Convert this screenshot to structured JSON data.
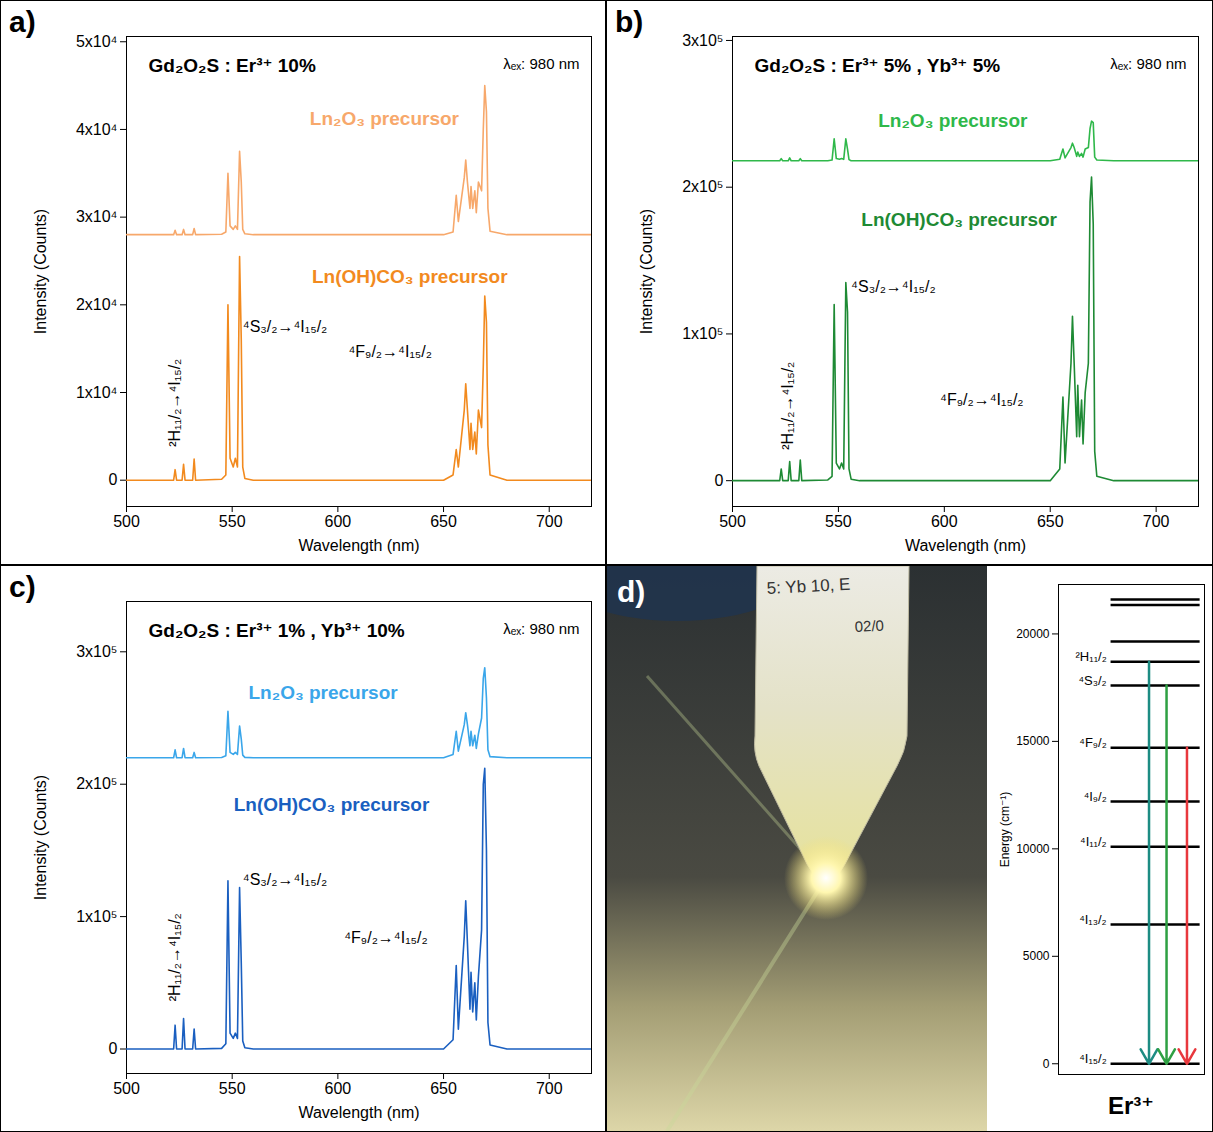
{
  "chart_data": [
    {
      "panel": "a)",
      "type": "line",
      "title": "Gd₂O₂S : Er³⁺ 10%",
      "excitation": "λₑₓ: 980 nm",
      "x_label": "Wavelength (nm)",
      "y_label": "Intensity (Counts)",
      "xlim": [
        500,
        720
      ],
      "xticks": [
        500,
        550,
        600,
        650,
        700
      ],
      "ylim": [
        -3000,
        50600
      ],
      "yticks": [
        0,
        {
          "value": 10000,
          "label": "1x10⁴"
        },
        {
          "value": 20000,
          "label": "2x10⁴"
        },
        {
          "value": 30000,
          "label": "3x10⁴"
        },
        {
          "value": 40000,
          "label": "4x10⁴"
        },
        {
          "value": 50000,
          "label": "5x10⁴"
        }
      ],
      "x": [
        500,
        520,
        522.3,
        523,
        523.7,
        526.3,
        527,
        527.7,
        531.3,
        532,
        532.7,
        545,
        547,
        548,
        549,
        550.5,
        551.5,
        552.5,
        553.5,
        554.3,
        555,
        556,
        560,
        650,
        654.5,
        656,
        657,
        659.8,
        660.5,
        661.3,
        662.5,
        663,
        663.8,
        664.8,
        665.5,
        666.5,
        668,
        668.8,
        669.5,
        670.3,
        671,
        672,
        680,
        720
      ],
      "series": [
        {
          "name": "Ln₂O₃ precursor",
          "color": "#f7a86b",
          "label_position": [
            622,
            41200
          ],
          "values": [
            28000,
            28000,
            28000,
            28500,
            28000,
            28000,
            28600,
            28000,
            28000,
            28700,
            28000,
            28050,
            28300,
            35000,
            29000,
            28600,
            29000,
            28600,
            37500,
            34000,
            28600,
            28100,
            28000,
            28000,
            28300,
            32500,
            29500,
            34500,
            36500,
            34000,
            31000,
            33500,
            31000,
            33000,
            30500,
            34000,
            33000,
            40000,
            45000,
            42000,
            31000,
            28400,
            28000,
            28000
          ]
        },
        {
          "name": "Ln(OH)CO₃ precursor",
          "color": "#f28a1e",
          "label_position": [
            634,
            23200
          ],
          "values": [
            0,
            0,
            0,
            1200,
            0,
            0,
            1800,
            0,
            0,
            2400,
            0,
            100,
            600,
            20000,
            2500,
            1500,
            2500,
            1500,
            25500,
            16000,
            1500,
            200,
            0,
            0,
            600,
            3500,
            1500,
            8000,
            11000,
            8000,
            3500,
            6500,
            3500,
            5500,
            3000,
            8000,
            6000,
            13000,
            21000,
            18000,
            4000,
            600,
            0,
            0
          ]
        }
      ],
      "annotations": [
        {
          "text": "²H₁₁/₂→⁴I₁₅/₂",
          "x": 523,
          "y": 3800
        },
        {
          "text": "⁴S₃/₂→⁴I₁₅/₂",
          "x": 555,
          "y": 17500
        },
        {
          "text": "⁴F₉/₂→⁴I₁₅/₂",
          "x": 605,
          "y": 14600
        }
      ]
    },
    {
      "panel": "b)",
      "type": "line",
      "title": "Gd₂O₂S : Er³⁺ 5% , Yb³⁺ 5%",
      "excitation": "λₑₓ: 980 nm",
      "x_label": "Wavelength (nm)",
      "y_label": "Intensity (Counts)",
      "xlim": [
        500,
        720
      ],
      "xticks": [
        500,
        550,
        600,
        650,
        700
      ],
      "ylim": [
        -17600,
        302700
      ],
      "yticks": [
        0,
        {
          "value": 100000,
          "label": "1x10⁵"
        },
        {
          "value": 200000,
          "label": "2x10⁵"
        },
        {
          "value": 300000,
          "label": "3x10⁵"
        }
      ],
      "x": [
        500,
        520,
        522.3,
        523,
        523.7,
        526.3,
        527,
        527.7,
        531.3,
        532,
        532.7,
        545,
        547,
        548,
        549,
        550.5,
        551.5,
        552.5,
        553.5,
        554.3,
        555,
        556,
        560,
        650,
        654.5,
        656,
        657,
        659.8,
        660.5,
        661.3,
        662.5,
        663,
        663.8,
        664.8,
        665.5,
        666.5,
        668,
        668.8,
        669.5,
        670.3,
        671,
        672,
        680,
        720
      ],
      "series": [
        {
          "name": "Ln₂O₃ precursor",
          "color": "#2fb84a",
          "label_position": [
            604,
            245000
          ],
          "values": [
            218000,
            218000,
            218000,
            219500,
            218000,
            218000,
            220000,
            218000,
            218000,
            219500,
            218000,
            218000,
            218500,
            233000,
            219500,
            219000,
            219500,
            219000,
            233000,
            226000,
            218800,
            218000,
            218000,
            218000,
            219000,
            226000,
            220000,
            227000,
            230000,
            227000,
            221000,
            224000,
            221000,
            223000,
            220500,
            226000,
            227000,
            240000,
            245000,
            244000,
            220500,
            218500,
            218000,
            218000
          ]
        },
        {
          "name": "Ln(OH)CO₃ precursor",
          "color": "#1e8a34",
          "label_position": [
            607,
            178000
          ],
          "values": [
            0,
            0,
            0,
            8000,
            0,
            0,
            13000,
            0,
            0,
            14000,
            0,
            500,
            3000,
            120000,
            12000,
            8000,
            12000,
            8000,
            135000,
            115000,
            8000,
            1000,
            0,
            0,
            8000,
            57000,
            12000,
            80000,
            112000,
            80000,
            30000,
            65000,
            30000,
            55000,
            25000,
            60000,
            80000,
            190000,
            207000,
            175000,
            20000,
            3000,
            0,
            0
          ]
        }
      ],
      "annotations": [
        {
          "text": "²H₁₁/₂→⁴I₁₅/₂",
          "x": 526,
          "y": 21000
        },
        {
          "text": "⁴S₃/₂→⁴I₁₅/₂",
          "x": 556,
          "y": 132000
        },
        {
          "text": "⁴F₉/₂→⁴I₁₅/₂",
          "x": 598,
          "y": 55000
        }
      ]
    },
    {
      "panel": "c)",
      "type": "line",
      "title": "Gd₂O₂S : Er³⁺ 1% , Yb³⁺ 10%",
      "excitation": "λₑₓ: 980 nm",
      "x_label": "Wavelength (nm)",
      "y_label": "Intensity (Counts)",
      "xlim": [
        500,
        720
      ],
      "xticks": [
        500,
        550,
        600,
        650,
        700
      ],
      "ylim": [
        -18500,
        338000
      ],
      "yticks": [
        0,
        {
          "value": 100000,
          "label": "1x10⁵"
        },
        {
          "value": 200000,
          "label": "2x10⁵"
        },
        {
          "value": 300000,
          "label": "3x10⁵"
        }
      ],
      "x": [
        500,
        520,
        522.3,
        523,
        523.7,
        526.3,
        527,
        527.7,
        531.3,
        532,
        532.7,
        545,
        547,
        548,
        549,
        550.5,
        551.5,
        552.5,
        553.5,
        554.3,
        555,
        556,
        560,
        650,
        654.5,
        656,
        657,
        659.8,
        660.5,
        661.3,
        662.5,
        663,
        663.8,
        664.8,
        665.5,
        666.5,
        668,
        668.8,
        669.5,
        670.3,
        671,
        672,
        680,
        720
      ],
      "series": [
        {
          "name": "Ln₂O₃ precursor",
          "color": "#3aa6ea",
          "label_position": [
            593,
            269000
          ],
          "values": [
            220000,
            220000,
            220000,
            226000,
            220000,
            220000,
            227000,
            220000,
            220000,
            224000,
            220000,
            220200,
            221500,
            255000,
            224000,
            222500,
            224000,
            222500,
            244000,
            234000,
            222000,
            220300,
            220000,
            220000,
            222500,
            240000,
            225000,
            245000,
            254000,
            245000,
            229000,
            240000,
            229000,
            237000,
            227000,
            238000,
            250000,
            280000,
            288000,
            265000,
            226000,
            220800,
            220000,
            220000
          ]
        },
        {
          "name": "Ln(OH)CO₃ precursor",
          "color": "#1a5fc0",
          "label_position": [
            597,
            184000
          ],
          "values": [
            0,
            0,
            0,
            18000,
            0,
            0,
            23000,
            0,
            0,
            15000,
            0,
            500,
            4000,
            127000,
            12000,
            8000,
            12000,
            8000,
            122000,
            65000,
            6000,
            1000,
            0,
            0,
            7000,
            63000,
            15000,
            85000,
            112000,
            80000,
            30000,
            58000,
            28000,
            50000,
            22000,
            55000,
            90000,
            200000,
            212000,
            150000,
            20000,
            3000,
            0,
            0
          ]
        }
      ],
      "annotations": [
        {
          "text": "²H₁₁/₂→⁴I₁₅/₂",
          "x": 523,
          "y": 36000
        },
        {
          "text": "⁴S₃/₂→⁴I₁₅/₂",
          "x": 555,
          "y": 128000
        },
        {
          "text": "⁴F₉/₂→⁴I₁₅/₂",
          "x": 603,
          "y": 84000
        }
      ]
    },
    {
      "type": "level_diagram",
      "title": "Er³⁺",
      "y_label": "Energy (cm⁻¹)",
      "ylim": [
        -500,
        22300
      ],
      "yticks": [
        0,
        5000,
        10000,
        15000,
        20000
      ],
      "levels": [
        {
          "label": "⁴I₁₅/₂",
          "energy": 0
        },
        {
          "label": "⁴I₁₃/₂",
          "energy": 6480
        },
        {
          "label": "⁴I₁₁/₂",
          "energy": 10100
        },
        {
          "label": "⁴I₉/₂",
          "energy": 12200
        },
        {
          "label": "⁴F₉/₂",
          "energy": 14700
        },
        {
          "label": "⁴S₃/₂",
          "energy": 17600
        },
        {
          "label": "²H₁₁/₂",
          "energy": 18700
        },
        {
          "label": null,
          "energy": 19650
        },
        {
          "label": null,
          "energy": 21350
        },
        {
          "label": null,
          "energy": 21600
        }
      ],
      "transitions": [
        {
          "from": "²H₁₁/₂",
          "to": "⁴I₁₅/₂",
          "color": "#1d8c83"
        },
        {
          "from": "⁴S₃/₂",
          "to": "⁴I₁₅/₂",
          "color": "#2ea043"
        },
        {
          "from": "⁴F₉/₂",
          "to": "⁴I₁₅/₂",
          "color": "#e8383d"
        }
      ]
    }
  ],
  "photo": {
    "panel": "d)",
    "tube_text": [
      "5: Yb 10, E",
      "02/0"
    ]
  }
}
